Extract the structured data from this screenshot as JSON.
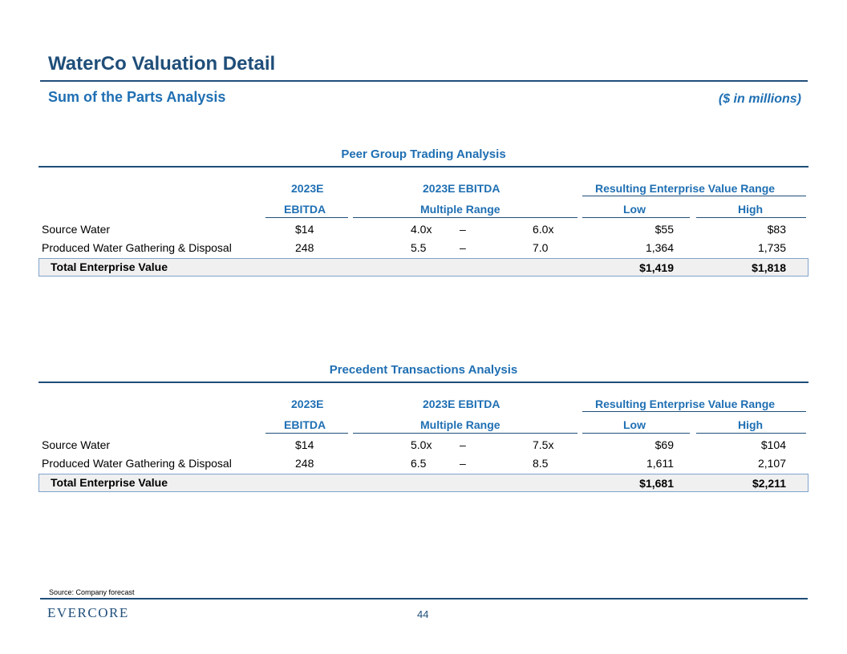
{
  "header": {
    "title": "WaterCo Valuation Detail",
    "subtitle": "Sum of the Parts Analysis",
    "units": "($ in millions)"
  },
  "columns": {
    "ebitda_line1": "2023E",
    "ebitda_line2": "EBITDA",
    "multiple_line1": "2023E EBITDA",
    "multiple_line2": "Multiple Range",
    "ev_range": "Resulting Enterprise Value Range",
    "low": "Low",
    "high": "High"
  },
  "peer": {
    "title": "Peer Group Trading Analysis",
    "rows": [
      {
        "label": "Source Water",
        "ebitda": "$14",
        "mult_low": "4.0x",
        "dash": "–",
        "mult_high": "6.0x",
        "low": "$55",
        "high": "$83"
      },
      {
        "label": "Produced Water Gathering & Disposal",
        "ebitda": "248",
        "mult_low": "5.5",
        "dash": "–",
        "mult_high": "7.0",
        "low": "1,364",
        "high": "1,735"
      }
    ],
    "total": {
      "label": "Total Enterprise Value",
      "low": "$1,419",
      "high": "$1,818"
    }
  },
  "precedent": {
    "title": "Precedent Transactions Analysis",
    "rows": [
      {
        "label": "Source Water",
        "ebitda": "$14",
        "mult_low": "5.0x",
        "dash": "–",
        "mult_high": "7.5x",
        "low": "$69",
        "high": "$104"
      },
      {
        "label": "Produced Water Gathering & Disposal",
        "ebitda": "248",
        "mult_low": "6.5",
        "dash": "–",
        "mult_high": "8.5",
        "low": "1,611",
        "high": "2,107"
      }
    ],
    "total": {
      "label": "Total Enterprise Value",
      "low": "$1,681",
      "high": "$2,211"
    }
  },
  "footer": {
    "source": "Source: Company forecast",
    "logo": "EVERCORE",
    "page": "44"
  }
}
